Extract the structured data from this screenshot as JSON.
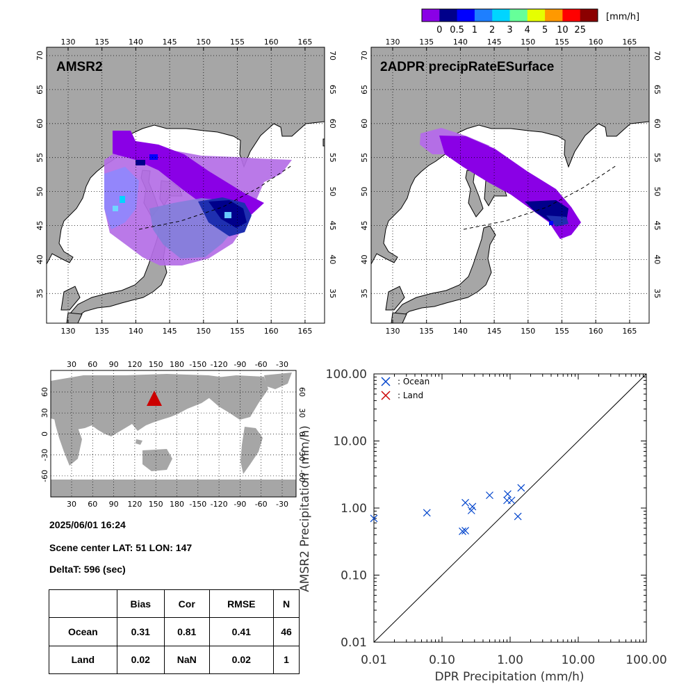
{
  "colorbar": {
    "unit_label": "[mm/h]",
    "tick_labels": [
      "0",
      "0.5",
      "1",
      "2",
      "3",
      "4",
      "5",
      "10",
      "25"
    ],
    "colors": [
      "#8a00e6",
      "#00008b",
      "#0000ff",
      "#1e7fff",
      "#00d5ff",
      "#66ff99",
      "#e6ff00",
      "#ff9900",
      "#ff0000",
      "#8b0000"
    ]
  },
  "maps": {
    "left_title": "AMSR2",
    "right_title": "2ADPR precipRateESurface",
    "lon_ticks": [
      "130",
      "135",
      "140",
      "145",
      "150",
      "155",
      "160",
      "165"
    ],
    "lat_ticks": [
      "70",
      "65",
      "60",
      "55",
      "50",
      "45",
      "40",
      "35"
    ],
    "land_color": "#a6a6a6",
    "ocean_color": "#ffffff"
  },
  "world_map": {
    "lon_ticks": [
      "30",
      "60",
      "90",
      "120",
      "150",
      "180",
      "-150",
      "-120",
      "-90",
      "-60",
      "-30"
    ],
    "lat_ticks": [
      "60",
      "30",
      "0",
      "-30",
      "-60"
    ],
    "marker_color": "#cc0000"
  },
  "scene": {
    "datetime": "2025/06/01 16:24",
    "center": "Scene center LAT: 51   LON: 147",
    "deltat": "DeltaT:  596 (sec)"
  },
  "stats_table": {
    "headers": [
      "",
      "Bias",
      "Cor",
      "RMSE",
      "N"
    ],
    "rows": [
      [
        "Ocean",
        "0.31",
        "0.81",
        "0.41",
        "46"
      ],
      [
        "Land",
        "0.02",
        "NaN",
        "0.02",
        "1"
      ]
    ]
  },
  "chart_data": {
    "type": "scatter",
    "xlabel": "DPR Precipitation (mm/h)",
    "ylabel": "AMSR2 Precipitation (mm/h)",
    "xscale": "log",
    "yscale": "log",
    "xlim": [
      0.01,
      100
    ],
    "ylim": [
      0.01,
      100
    ],
    "x_tick_labels": [
      "0.01",
      "0.10",
      "1.00",
      "10.00",
      "100.00"
    ],
    "y_tick_labels": [
      "0.01",
      "0.10",
      "1.00",
      "10.00",
      "100.00"
    ],
    "legend_position": "top-left",
    "series": [
      {
        "name": ": Ocean",
        "color": "#0044cc",
        "marker": "x",
        "points": [
          [
            0.01,
            0.7
          ],
          [
            0.06,
            0.85
          ],
          [
            0.2,
            0.45
          ],
          [
            0.22,
            0.46
          ],
          [
            0.22,
            1.2
          ],
          [
            0.27,
            0.92
          ],
          [
            0.28,
            1.05
          ],
          [
            0.5,
            1.55
          ],
          [
            0.9,
            1.3
          ],
          [
            0.92,
            1.62
          ],
          [
            1.05,
            1.3
          ],
          [
            1.3,
            0.75
          ],
          [
            1.45,
            2.0
          ]
        ]
      },
      {
        "name": ": Land",
        "color": "#cc0000",
        "marker": "x",
        "points": []
      }
    ],
    "reference_line": "1:1"
  }
}
